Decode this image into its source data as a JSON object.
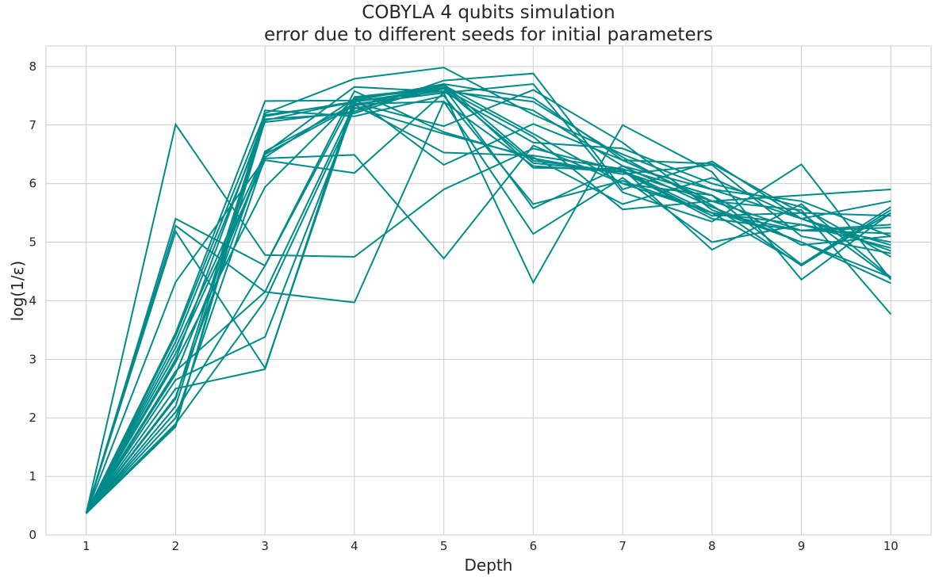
{
  "chart_data": {
    "type": "line",
    "title_line1": "COBYLA 4 qubits simulation",
    "title_line2": "error due to different seeds for initial parameters",
    "xlabel": "Depth",
    "ylabel": "log(1/ε)",
    "x": [
      1,
      2,
      3,
      4,
      5,
      6,
      7,
      8,
      9,
      10
    ],
    "xlim": [
      0.55,
      10.45
    ],
    "ylim": [
      0,
      8.35
    ],
    "xticks": [
      "1",
      "2",
      "3",
      "4",
      "5",
      "6",
      "7",
      "8",
      "9",
      "10"
    ],
    "yticks": [
      "0",
      "1",
      "2",
      "3",
      "4",
      "5",
      "6",
      "7",
      "8"
    ],
    "grid": true,
    "line_color": "#008b8b",
    "series": [
      {
        "values": [
          0.37,
          7.01,
          4.78,
          4.75,
          5.9,
          6.6,
          6.22,
          5.5,
          4.62,
          5.6
        ]
      },
      {
        "values": [
          0.37,
          5.4,
          4.6,
          7.48,
          7.64,
          5.58,
          6.3,
          5.6,
          5.0,
          4.4
        ]
      },
      {
        "values": [
          0.37,
          5.28,
          4.15,
          3.97,
          7.4,
          6.3,
          6.2,
          5.7,
          5.2,
          5.3
        ]
      },
      {
        "values": [
          0.37,
          5.18,
          2.85,
          7.36,
          7.55,
          4.31,
          7.0,
          6.2,
          4.36,
          5.5
        ]
      },
      {
        "values": [
          0.37,
          4.32,
          6.43,
          6.49,
          4.72,
          6.65,
          6.0,
          5.5,
          5.3,
          5.0
        ]
      },
      {
        "values": [
          0.37,
          3.45,
          7.41,
          7.42,
          7.7,
          7.46,
          6.4,
          6.34,
          5.5,
          4.38
        ]
      },
      {
        "values": [
          0.37,
          3.4,
          7.2,
          7.79,
          7.98,
          7.18,
          6.5,
          5.9,
          5.7,
          5.1
        ]
      },
      {
        "values": [
          0.37,
          3.3,
          7.05,
          7.23,
          7.76,
          7.88,
          5.9,
          6.38,
          5.4,
          4.85
        ]
      },
      {
        "values": [
          0.37,
          3.2,
          6.52,
          7.65,
          7.57,
          6.7,
          6.6,
          6.0,
          5.6,
          4.75
        ]
      },
      {
        "values": [
          0.37,
          3.1,
          6.4,
          6.18,
          7.55,
          7.7,
          5.85,
          5.35,
          6.33,
          4.36
        ]
      },
      {
        "values": [
          0.37,
          2.95,
          5.94,
          7.46,
          6.32,
          7.02,
          6.4,
          5.7,
          5.8,
          5.9
        ]
      },
      {
        "values": [
          0.37,
          2.8,
          4.15,
          7.35,
          6.53,
          6.48,
          6.25,
          5.8,
          4.62,
          5.5
        ]
      },
      {
        "values": [
          0.37,
          2.65,
          3.38,
          7.3,
          6.85,
          6.45,
          5.65,
          6.1,
          5.4,
          4.95
        ]
      },
      {
        "values": [
          0.37,
          2.5,
          2.83,
          7.46,
          7.62,
          6.8,
          5.56,
          5.7,
          5.55,
          3.77
        ]
      },
      {
        "values": [
          0.37,
          2.36,
          6.55,
          7.36,
          7.4,
          5.14,
          6.1,
          5.0,
          5.3,
          4.9
        ]
      },
      {
        "values": [
          0.37,
          2.33,
          7.17,
          7.38,
          6.98,
          7.6,
          6.7,
          5.55,
          5.0,
          4.3
        ]
      },
      {
        "values": [
          0.37,
          2.2,
          7.1,
          7.2,
          7.7,
          6.39,
          6.2,
          5.4,
          5.2,
          5.25
        ]
      },
      {
        "values": [
          0.37,
          2.1,
          4.6,
          7.58,
          6.88,
          6.43,
          6.16,
          6.32,
          5.1,
          4.81
        ]
      },
      {
        "values": [
          0.37,
          2.0,
          6.45,
          7.45,
          7.67,
          6.27,
          6.25,
          4.87,
          5.65,
          4.4
        ]
      },
      {
        "values": [
          0.37,
          1.9,
          4.0,
          7.28,
          7.62,
          6.35,
          6.2,
          5.45,
          5.5,
          5.45
        ]
      },
      {
        "values": [
          0.37,
          1.85,
          7.25,
          7.15,
          7.5,
          5.65,
          6.05,
          5.5,
          5.2,
          5.15
        ]
      },
      {
        "values": [
          0.37,
          1.88,
          7.08,
          7.4,
          7.58,
          7.4,
          6.45,
          5.63,
          4.6,
          5.55
        ]
      },
      {
        "values": [
          0.37,
          2.75,
          6.5,
          7.33,
          7.68,
          6.85,
          6.0,
          5.8,
          4.95,
          5.1
        ]
      },
      {
        "values": [
          0.37,
          3.0,
          7.15,
          7.4,
          7.62,
          7.25,
          6.3,
          5.9,
          5.4,
          5.7
        ]
      }
    ]
  }
}
